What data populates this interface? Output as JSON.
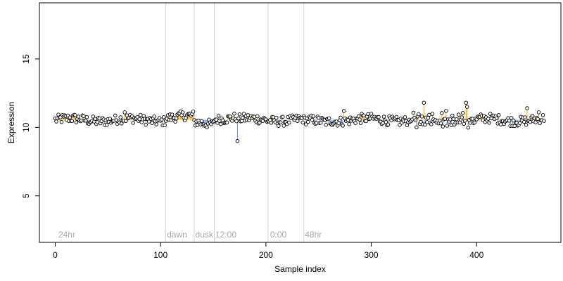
{
  "chart_data": {
    "type": "scatter",
    "title": "",
    "xlabel": "Sample index",
    "ylabel": "Expression",
    "xlim": [
      -15,
      480
    ],
    "ylim": [
      1.6,
      19.1
    ],
    "xticks": [
      0,
      100,
      200,
      300,
      400
    ],
    "yticks": [
      5,
      10,
      15
    ],
    "baseline": 10.55,
    "n_points": 465,
    "colors": {
      "point_fill": "#ffffff",
      "point_stroke": "#000000",
      "stem_above": "#ffa500",
      "stem_below": "#6495ed",
      "vline": "#d3d3d3",
      "annotation": "#a9a9a9"
    },
    "vlines": [
      105,
      132,
      151,
      202,
      236
    ],
    "annotations": [
      {
        "x": 3,
        "label": "24hr"
      },
      {
        "x": 106,
        "label": "dawn"
      },
      {
        "x": 133,
        "label": "dusk"
      },
      {
        "x": 152,
        "label": "12:00"
      },
      {
        "x": 204,
        "label": "0:00"
      },
      {
        "x": 237,
        "label": "48hr"
      }
    ],
    "notable_points": [
      {
        "x": 173,
        "y": 9.0
      },
      {
        "x": 66,
        "y": 11.1
      },
      {
        "x": 274,
        "y": 11.2
      },
      {
        "x": 350,
        "y": 11.8
      },
      {
        "x": 371,
        "y": 11.2
      },
      {
        "x": 390,
        "y": 11.8
      },
      {
        "x": 391,
        "y": 11.5
      },
      {
        "x": 448,
        "y": 11.4
      },
      {
        "x": 459,
        "y": 11.1
      }
    ]
  }
}
